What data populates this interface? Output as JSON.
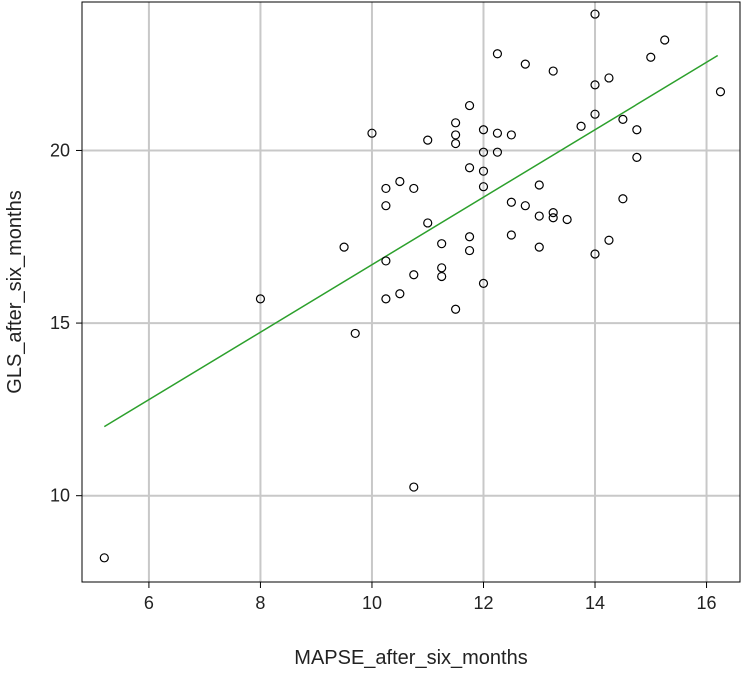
{
  "chart_data": {
    "type": "scatter",
    "title": "",
    "xlabel": "MAPSE_after_six_months",
    "ylabel": "GLS_after_six_months",
    "xlim": [
      4.8,
      16.6
    ],
    "ylim": [
      7.5,
      24.3
    ],
    "xticks": [
      6,
      8,
      10,
      12,
      14,
      16
    ],
    "yticks": [
      10,
      15,
      20
    ],
    "grid": true,
    "colors": {
      "points": "#000000",
      "fit_line": "#2ca02c",
      "grid": "#c8c8c8",
      "frame": "#000000"
    },
    "points": [
      {
        "x": 5.2,
        "y": 8.2
      },
      {
        "x": 8.0,
        "y": 15.7
      },
      {
        "x": 9.5,
        "y": 17.2
      },
      {
        "x": 9.7,
        "y": 14.7
      },
      {
        "x": 10.0,
        "y": 20.5
      },
      {
        "x": 10.25,
        "y": 18.9
      },
      {
        "x": 10.25,
        "y": 18.4
      },
      {
        "x": 10.25,
        "y": 16.8
      },
      {
        "x": 10.25,
        "y": 15.7
      },
      {
        "x": 10.5,
        "y": 19.1
      },
      {
        "x": 10.5,
        "y": 15.85
      },
      {
        "x": 10.75,
        "y": 18.9
      },
      {
        "x": 10.75,
        "y": 16.4
      },
      {
        "x": 10.75,
        "y": 10.25
      },
      {
        "x": 11.0,
        "y": 20.3
      },
      {
        "x": 11.0,
        "y": 17.9
      },
      {
        "x": 11.25,
        "y": 17.3
      },
      {
        "x": 11.25,
        "y": 16.6
      },
      {
        "x": 11.25,
        "y": 16.35
      },
      {
        "x": 11.5,
        "y": 20.8
      },
      {
        "x": 11.5,
        "y": 20.45
      },
      {
        "x": 11.5,
        "y": 20.2
      },
      {
        "x": 11.5,
        "y": 15.4
      },
      {
        "x": 11.75,
        "y": 21.3
      },
      {
        "x": 11.75,
        "y": 19.5
      },
      {
        "x": 11.75,
        "y": 17.5
      },
      {
        "x": 11.75,
        "y": 17.1
      },
      {
        "x": 12.0,
        "y": 20.6
      },
      {
        "x": 12.0,
        "y": 19.95
      },
      {
        "x": 12.0,
        "y": 19.4
      },
      {
        "x": 12.0,
        "y": 18.95
      },
      {
        "x": 12.0,
        "y": 16.15
      },
      {
        "x": 12.25,
        "y": 22.8
      },
      {
        "x": 12.25,
        "y": 20.5
      },
      {
        "x": 12.25,
        "y": 19.95
      },
      {
        "x": 12.5,
        "y": 20.45
      },
      {
        "x": 12.5,
        "y": 18.5
      },
      {
        "x": 12.5,
        "y": 17.55
      },
      {
        "x": 12.75,
        "y": 22.5
      },
      {
        "x": 12.75,
        "y": 18.4
      },
      {
        "x": 13.0,
        "y": 19.0
      },
      {
        "x": 13.0,
        "y": 18.1
      },
      {
        "x": 13.0,
        "y": 17.2
      },
      {
        "x": 13.25,
        "y": 22.3
      },
      {
        "x": 13.25,
        "y": 18.2
      },
      {
        "x": 13.25,
        "y": 18.05
      },
      {
        "x": 13.5,
        "y": 18.0
      },
      {
        "x": 13.75,
        "y": 20.7
      },
      {
        "x": 14.0,
        "y": 23.95
      },
      {
        "x": 14.0,
        "y": 21.9
      },
      {
        "x": 14.0,
        "y": 21.05
      },
      {
        "x": 14.0,
        "y": 17.0
      },
      {
        "x": 14.25,
        "y": 22.1
      },
      {
        "x": 14.25,
        "y": 17.4
      },
      {
        "x": 14.5,
        "y": 20.9
      },
      {
        "x": 14.5,
        "y": 18.6
      },
      {
        "x": 14.75,
        "y": 20.6
      },
      {
        "x": 14.75,
        "y": 19.8
      },
      {
        "x": 15.0,
        "y": 22.7
      },
      {
        "x": 15.25,
        "y": 23.2
      },
      {
        "x": 16.25,
        "y": 21.7
      }
    ],
    "fit_line": {
      "x": [
        5.2,
        16.2
      ],
      "y": [
        12.0,
        22.75
      ]
    }
  }
}
